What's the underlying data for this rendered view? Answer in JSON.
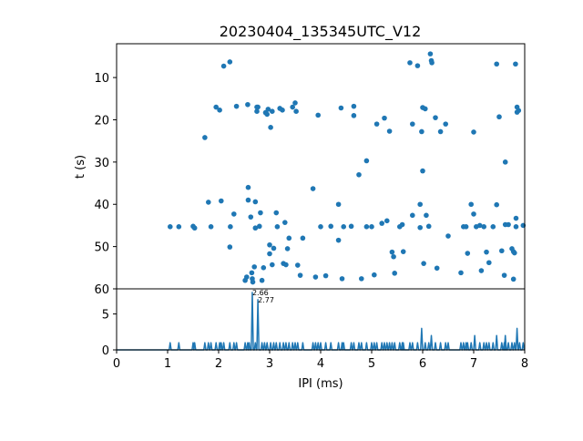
{
  "chart_data": [
    {
      "type": "scatter",
      "title": "20230404_135345UTC_V12",
      "xlabel": "",
      "ylabel": "t (s)",
      "xlim": [
        0,
        8
      ],
      "ylim": [
        60,
        2
      ],
      "y_inverted": true,
      "y_ticks": [
        10,
        20,
        30,
        40,
        50,
        60
      ],
      "grid": false,
      "color": "#1f77b4",
      "points": [
        [
          1.05,
          45.3
        ],
        [
          1.22,
          45.3
        ],
        [
          1.5,
          45.2
        ],
        [
          1.53,
          45.6
        ],
        [
          1.73,
          24.2
        ],
        [
          1.8,
          39.5
        ],
        [
          1.85,
          45.3
        ],
        [
          1.95,
          17.0
        ],
        [
          2.02,
          17.7
        ],
        [
          2.05,
          39.2
        ],
        [
          2.1,
          7.3
        ],
        [
          2.22,
          6.3
        ],
        [
          2.22,
          50.1
        ],
        [
          2.23,
          45.3
        ],
        [
          2.3,
          42.3
        ],
        [
          2.35,
          16.8
        ],
        [
          2.52,
          58.0
        ],
        [
          2.55,
          57.2
        ],
        [
          2.57,
          16.4
        ],
        [
          2.58,
          36.0
        ],
        [
          2.58,
          39.0
        ],
        [
          2.63,
          43.0
        ],
        [
          2.65,
          56.2
        ],
        [
          2.66,
          57.6
        ],
        [
          2.67,
          58.4
        ],
        [
          2.7,
          54.8
        ],
        [
          2.72,
          39.4
        ],
        [
          2.72,
          45.6
        ],
        [
          2.75,
          17.0
        ],
        [
          2.75,
          18.0
        ],
        [
          2.77,
          17.0
        ],
        [
          2.8,
          45.2
        ],
        [
          2.82,
          42.0
        ],
        [
          2.85,
          58.0
        ],
        [
          2.88,
          55.0
        ],
        [
          2.92,
          18.3
        ],
        [
          2.95,
          18.7
        ],
        [
          2.97,
          17.5
        ],
        [
          3.0,
          49.6
        ],
        [
          3.0,
          51.7
        ],
        [
          3.02,
          21.8
        ],
        [
          3.05,
          18.0
        ],
        [
          3.05,
          54.3
        ],
        [
          3.08,
          50.4
        ],
        [
          3.13,
          42.0
        ],
        [
          3.15,
          45.3
        ],
        [
          3.2,
          17.3
        ],
        [
          3.25,
          17.7
        ],
        [
          3.27,
          54.0
        ],
        [
          3.32,
          54.3
        ],
        [
          3.3,
          44.3
        ],
        [
          3.35,
          50.5
        ],
        [
          3.38,
          48.0
        ],
        [
          3.45,
          17.0
        ],
        [
          3.5,
          16.0
        ],
        [
          3.52,
          18.0
        ],
        [
          3.55,
          54.4
        ],
        [
          3.6,
          56.8
        ],
        [
          3.65,
          48.0
        ],
        [
          3.85,
          36.3
        ],
        [
          3.9,
          57.2
        ],
        [
          3.95,
          18.9
        ],
        [
          4.0,
          45.3
        ],
        [
          4.1,
          56.9
        ],
        [
          4.2,
          45.2
        ],
        [
          4.35,
          40.0
        ],
        [
          4.35,
          48.5
        ],
        [
          4.4,
          17.2
        ],
        [
          4.42,
          57.6
        ],
        [
          4.45,
          45.3
        ],
        [
          4.6,
          45.2
        ],
        [
          4.65,
          16.8
        ],
        [
          4.65,
          19.0
        ],
        [
          4.75,
          33.0
        ],
        [
          4.8,
          57.6
        ],
        [
          4.9,
          29.7
        ],
        [
          4.9,
          45.3
        ],
        [
          5.0,
          45.3
        ],
        [
          5.05,
          56.7
        ],
        [
          5.1,
          21.0
        ],
        [
          5.2,
          44.5
        ],
        [
          5.25,
          19.6
        ],
        [
          5.3,
          43.9
        ],
        [
          5.35,
          22.7
        ],
        [
          5.4,
          51.3
        ],
        [
          5.43,
          52.4
        ],
        [
          5.45,
          56.3
        ],
        [
          5.55,
          45.3
        ],
        [
          5.6,
          44.8
        ],
        [
          5.62,
          51.2
        ],
        [
          5.75,
          6.5
        ],
        [
          5.8,
          21.0
        ],
        [
          5.8,
          42.6
        ],
        [
          5.9,
          7.2
        ],
        [
          5.95,
          40.0
        ],
        [
          5.95,
          45.5
        ],
        [
          5.98,
          22.8
        ],
        [
          6.0,
          32.1
        ],
        [
          6.0,
          17.1
        ],
        [
          6.05,
          17.4
        ],
        [
          6.02,
          54.0
        ],
        [
          6.07,
          42.6
        ],
        [
          6.12,
          45.2
        ],
        [
          6.15,
          4.4
        ],
        [
          6.17,
          6.0
        ],
        [
          6.18,
          6.5
        ],
        [
          6.25,
          19.5
        ],
        [
          6.28,
          55.1
        ],
        [
          6.35,
          22.8
        ],
        [
          6.45,
          21.0
        ],
        [
          6.5,
          47.5
        ],
        [
          6.8,
          45.3
        ],
        [
          6.85,
          45.3
        ],
        [
          6.88,
          51.6
        ],
        [
          6.75,
          56.2
        ],
        [
          6.95,
          40.0
        ],
        [
          7.0,
          22.9
        ],
        [
          7.0,
          42.3
        ],
        [
          7.05,
          45.3
        ],
        [
          7.12,
          45.0
        ],
        [
          7.15,
          55.7
        ],
        [
          7.2,
          45.3
        ],
        [
          7.25,
          51.3
        ],
        [
          7.3,
          53.8
        ],
        [
          7.38,
          45.3
        ],
        [
          7.45,
          6.8
        ],
        [
          7.45,
          40.1
        ],
        [
          7.5,
          19.3
        ],
        [
          7.55,
          51.0
        ],
        [
          7.6,
          56.8
        ],
        [
          7.62,
          30.0
        ],
        [
          7.62,
          44.8
        ],
        [
          7.68,
          44.8
        ],
        [
          7.75,
          50.5
        ],
        [
          7.78,
          51.2
        ],
        [
          7.8,
          51.5
        ],
        [
          7.78,
          57.7
        ],
        [
          7.82,
          6.8
        ],
        [
          7.83,
          43.3
        ],
        [
          7.83,
          45.3
        ],
        [
          7.85,
          17.0
        ],
        [
          7.85,
          18.2
        ],
        [
          7.88,
          17.8
        ],
        [
          7.97,
          45.0
        ]
      ]
    },
    {
      "type": "line",
      "title": "",
      "xlabel": "IPI (ms)",
      "ylabel": "",
      "xlim": [
        0,
        8
      ],
      "ylim": [
        0,
        8.5
      ],
      "x_ticks": [
        0,
        1,
        2,
        3,
        4,
        5,
        6,
        7,
        8
      ],
      "y_ticks": [
        0,
        5
      ],
      "grid": false,
      "color": "#1f77b4",
      "spikes": [
        [
          1.05,
          1
        ],
        [
          1.22,
          1
        ],
        [
          1.5,
          1
        ],
        [
          1.53,
          1
        ],
        [
          1.73,
          1
        ],
        [
          1.8,
          1
        ],
        [
          1.85,
          1
        ],
        [
          1.95,
          1
        ],
        [
          2.02,
          1
        ],
        [
          2.05,
          1
        ],
        [
          2.1,
          1
        ],
        [
          2.22,
          1
        ],
        [
          2.3,
          1
        ],
        [
          2.35,
          1
        ],
        [
          2.52,
          1
        ],
        [
          2.57,
          1
        ],
        [
          2.6,
          1
        ],
        [
          2.66,
          8
        ],
        [
          2.72,
          1
        ],
        [
          2.77,
          7
        ],
        [
          2.85,
          1
        ],
        [
          2.9,
          1
        ],
        [
          2.95,
          1
        ],
        [
          3.02,
          1
        ],
        [
          3.08,
          1
        ],
        [
          3.13,
          1
        ],
        [
          3.2,
          1
        ],
        [
          3.27,
          1
        ],
        [
          3.32,
          1
        ],
        [
          3.38,
          1
        ],
        [
          3.45,
          1
        ],
        [
          3.5,
          1
        ],
        [
          3.55,
          1
        ],
        [
          3.65,
          1
        ],
        [
          3.85,
          1
        ],
        [
          3.9,
          1
        ],
        [
          3.95,
          1
        ],
        [
          4.0,
          1
        ],
        [
          4.1,
          1
        ],
        [
          4.2,
          1
        ],
        [
          4.35,
          1
        ],
        [
          4.42,
          1
        ],
        [
          4.45,
          1
        ],
        [
          4.6,
          1
        ],
        [
          4.65,
          1
        ],
        [
          4.75,
          1
        ],
        [
          4.8,
          1
        ],
        [
          4.9,
          1
        ],
        [
          5.0,
          1
        ],
        [
          5.05,
          1
        ],
        [
          5.1,
          1
        ],
        [
          5.2,
          1
        ],
        [
          5.25,
          1
        ],
        [
          5.3,
          1
        ],
        [
          5.35,
          1
        ],
        [
          5.4,
          1
        ],
        [
          5.45,
          1
        ],
        [
          5.55,
          1
        ],
        [
          5.6,
          1
        ],
        [
          5.62,
          1
        ],
        [
          5.75,
          1
        ],
        [
          5.8,
          1
        ],
        [
          5.9,
          1
        ],
        [
          5.98,
          3
        ],
        [
          6.05,
          1
        ],
        [
          6.12,
          1
        ],
        [
          6.17,
          2
        ],
        [
          6.25,
          1
        ],
        [
          6.35,
          1
        ],
        [
          6.45,
          1
        ],
        [
          6.5,
          1
        ],
        [
          6.75,
          1
        ],
        [
          6.8,
          1
        ],
        [
          6.85,
          1
        ],
        [
          6.88,
          1
        ],
        [
          6.95,
          1
        ],
        [
          7.02,
          2
        ],
        [
          7.12,
          1
        ],
        [
          7.2,
          1
        ],
        [
          7.25,
          1
        ],
        [
          7.3,
          1
        ],
        [
          7.38,
          1
        ],
        [
          7.45,
          2
        ],
        [
          7.55,
          1
        ],
        [
          7.6,
          1
        ],
        [
          7.62,
          2
        ],
        [
          7.68,
          1
        ],
        [
          7.75,
          1
        ],
        [
          7.8,
          1
        ],
        [
          7.85,
          3
        ],
        [
          7.9,
          1
        ],
        [
          7.97,
          1
        ]
      ],
      "annotations": [
        {
          "x": 2.66,
          "y": 8,
          "text": "2.66"
        },
        {
          "x": 2.77,
          "y": 7,
          "text": "2.77"
        }
      ]
    }
  ]
}
